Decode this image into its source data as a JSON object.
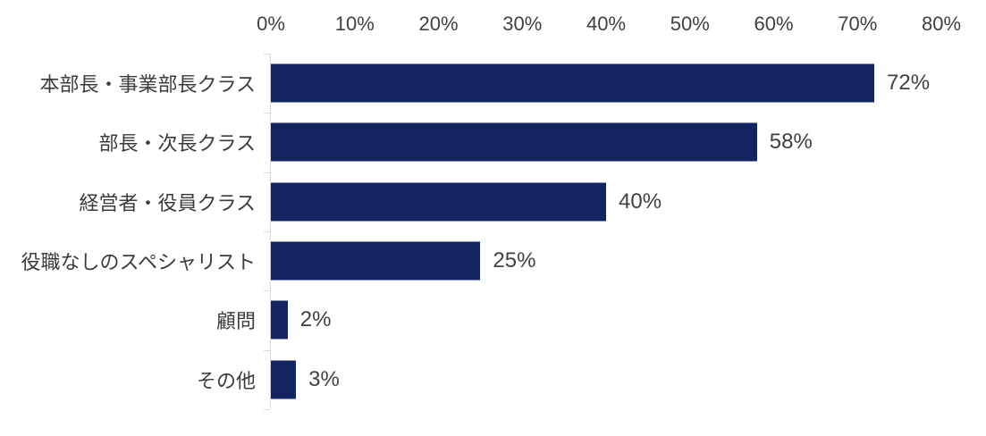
{
  "chart_data": {
    "type": "bar",
    "orientation": "horizontal",
    "title": "",
    "categories": [
      "本部長・事業部長クラス",
      "部長・次長クラス",
      "経営者・役員クラス",
      "役職なしのスペシャリスト",
      "顧問",
      "その他"
    ],
    "values": [
      72,
      58,
      40,
      25,
      2,
      3
    ],
    "data_labels": [
      "72%",
      "58%",
      "40%",
      "25%",
      "2%",
      "3%"
    ],
    "x_axis": {
      "position": "top",
      "min": 0,
      "max": 80,
      "tick_step": 10,
      "tick_labels": [
        "0%",
        "10%",
        "20%",
        "30%",
        "40%",
        "50%",
        "60%",
        "70%",
        "80%"
      ]
    },
    "legend": "none",
    "grid": "off",
    "colors": {
      "bar": "#132560",
      "axis_line": "#d9d9d9",
      "axis_label": "#404040",
      "category_label": "#3b3b3b",
      "value_label": "#404040",
      "background": "#ffffff"
    }
  }
}
